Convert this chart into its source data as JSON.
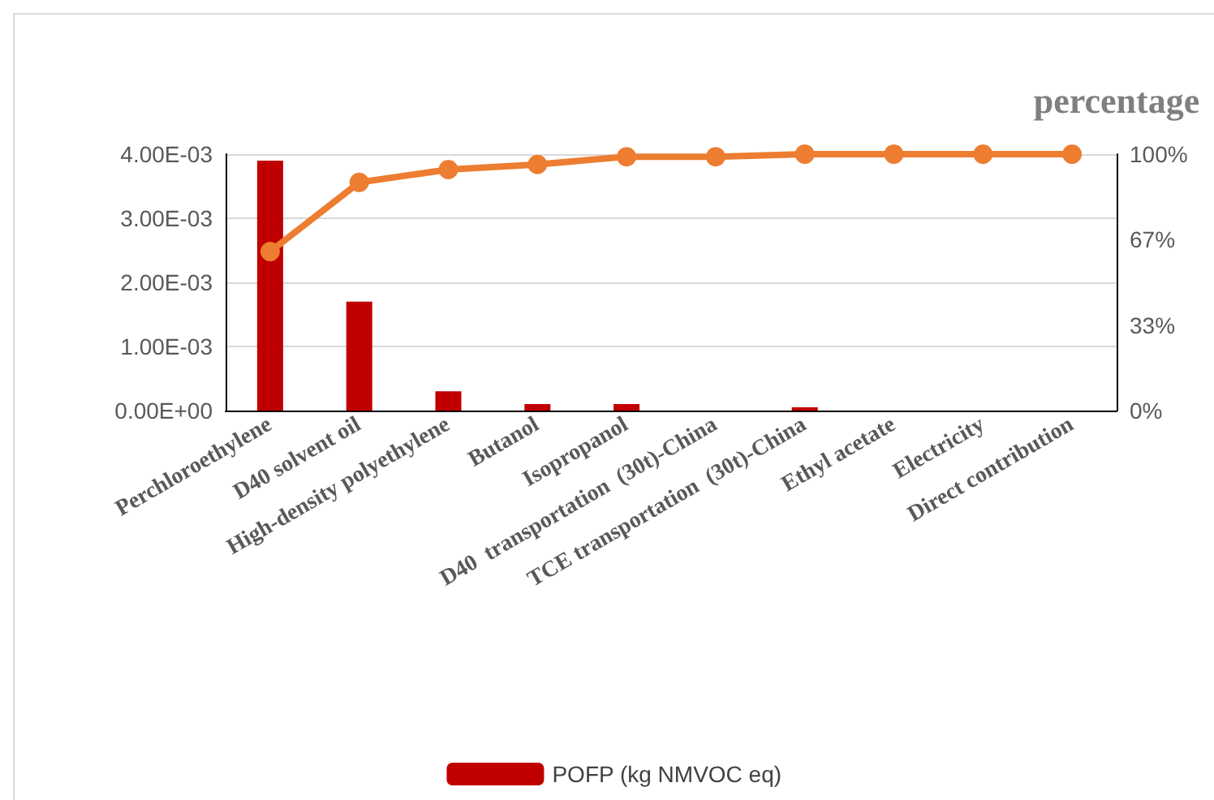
{
  "chart_data": {
    "type": "bar",
    "y2label": "percentage",
    "categories": [
      "Perchloroethylene",
      "D40 solvent oil",
      "High-density polyethylene",
      "Butanol",
      "Isopropanol",
      "D40  transportation  (30t)-China",
      "TCE transportation  (30t)-China",
      "Ethyl acetate",
      "Electricity",
      "Direct contribution"
    ],
    "series": [
      {
        "name": "POFP (kg NMVOC eq)",
        "color": "#c00000",
        "values": [
          0.0039,
          0.0017,
          0.0003,
          0.0001,
          0.0001,
          0,
          5e-05,
          0,
          0,
          0
        ]
      },
      {
        "type": "line",
        "axis": "y2",
        "color": "#ed7d31",
        "marker": "circle",
        "values": [
          62,
          89,
          94,
          96,
          99,
          99,
          100,
          100,
          100,
          100
        ]
      }
    ],
    "ylim": [
      0,
      0.004
    ],
    "yticks": [
      {
        "value": 0,
        "label": "0.00E+00"
      },
      {
        "value": 0.001,
        "label": "1.00E-03"
      },
      {
        "value": 0.002,
        "label": "2.00E-03"
      },
      {
        "value": 0.003,
        "label": "3.00E-03"
      },
      {
        "value": 0.004,
        "label": "4.00E-03"
      }
    ],
    "y2lim": [
      0,
      100
    ],
    "y2ticks": [
      {
        "value": 0,
        "label": "0%"
      },
      {
        "value": 33.33,
        "label": "33%"
      },
      {
        "value": 66.67,
        "label": "67%"
      },
      {
        "value": 100,
        "label": "100%"
      }
    ],
    "grid": "y",
    "legend": "bottom"
  }
}
